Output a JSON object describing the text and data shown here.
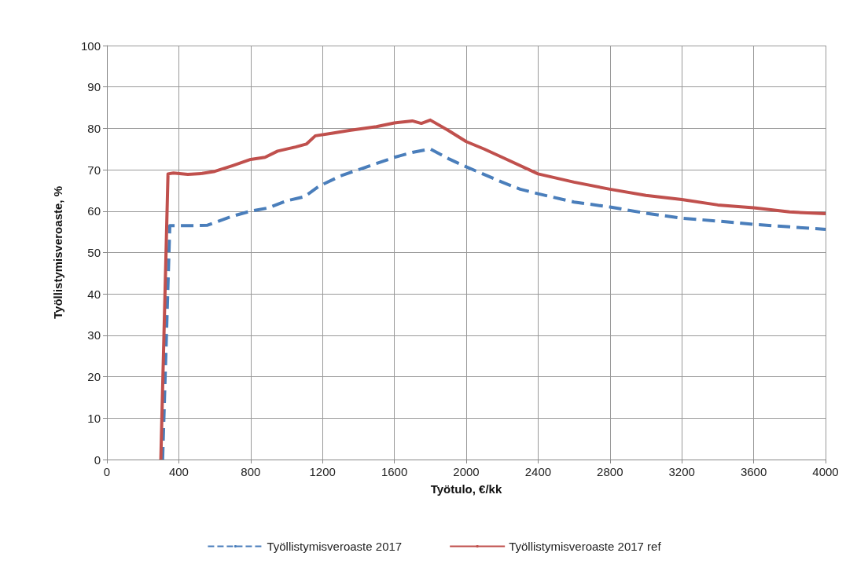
{
  "chart_data": {
    "type": "line",
    "xlabel": "Työtulo, €/kk",
    "ylabel": "Työllistymisveroaste, %",
    "xlim": [
      0,
      4000
    ],
    "xticks": [
      0,
      400,
      800,
      1200,
      1600,
      2000,
      2400,
      2800,
      3200,
      3600,
      4000
    ],
    "ylim": [
      0,
      100
    ],
    "yticks": [
      0,
      10,
      20,
      30,
      40,
      50,
      60,
      70,
      80,
      90,
      100
    ],
    "grid": true,
    "legend": "bottom",
    "marker": "none",
    "series": [
      {
        "name": "Työllistymisveroaste 2017",
        "color": "#4a7ebb",
        "line_style": "dashed",
        "x": [
          310,
          350,
          500,
          560,
          700,
          800,
          900,
          1000,
          1100,
          1180,
          1300,
          1500,
          1600,
          1700,
          1800,
          1900,
          2000,
          2200,
          2300,
          2400,
          2600,
          2800,
          3000,
          3200,
          3400,
          3600,
          3800,
          4000
        ],
        "values": [
          0,
          56.5,
          56.5,
          56.6,
          58.8,
          60,
          60.8,
          62.5,
          63.5,
          66,
          68.5,
          71.5,
          73,
          74.2,
          75,
          72.7,
          70.7,
          67,
          65.3,
          64.2,
          62.2,
          61,
          59.5,
          58.3,
          57.6,
          56.8,
          56.2,
          55.6
        ]
      },
      {
        "name": "Työllistymisveroaste 2017 ref",
        "color": "#c0504d",
        "line_style": "solid",
        "x": [
          300,
          340,
          370,
          450,
          530,
          600,
          700,
          800,
          880,
          950,
          1050,
          1110,
          1160,
          1250,
          1350,
          1500,
          1600,
          1700,
          1750,
          1800,
          1900,
          2000,
          2100,
          2200,
          2400,
          2600,
          2800,
          3000,
          3200,
          3400,
          3600,
          3800,
          4000
        ],
        "values": [
          0,
          69,
          69.2,
          68.9,
          69.1,
          69.6,
          71,
          72.5,
          73,
          74.5,
          75.5,
          76.2,
          78.2,
          78.8,
          79.5,
          80.4,
          81.3,
          81.8,
          81.2,
          82,
          79.5,
          76.8,
          75,
          73,
          69,
          67,
          65.3,
          63.8,
          62.8,
          61.5,
          60.8,
          59.8,
          59.4
        ]
      }
    ]
  }
}
